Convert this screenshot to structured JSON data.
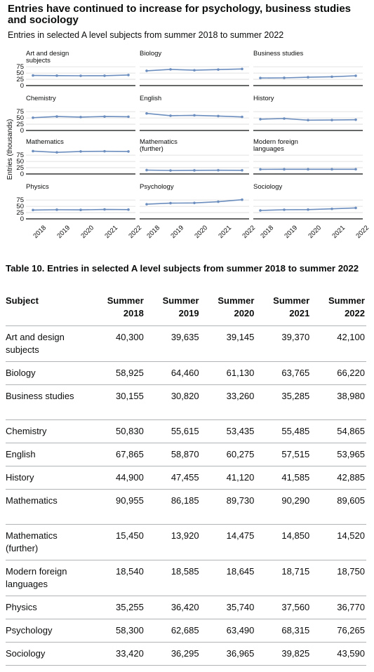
{
  "header": {
    "title": "Entries have continued to increase for psychology, business studies and sociology",
    "subtitle": "Entries in selected A level subjects from summer 2018 to summer 2022"
  },
  "chart_data": {
    "type": "line",
    "layout": "small-multiples",
    "ylabel": "Entries (thousands)",
    "yticks": [
      0,
      25,
      50,
      75
    ],
    "ylim": [
      0,
      95
    ],
    "x": [
      "2018",
      "2019",
      "2020",
      "2021",
      "2022"
    ],
    "line_color": "#6c8ebf",
    "panels": [
      {
        "name": "Art and design subjects",
        "values": [
          40.3,
          39.635,
          39.145,
          39.37,
          42.1
        ]
      },
      {
        "name": "Biology",
        "values": [
          58.925,
          64.46,
          61.13,
          63.765,
          66.22
        ]
      },
      {
        "name": "Business studies",
        "values": [
          30.155,
          30.82,
          33.26,
          35.285,
          38.98
        ]
      },
      {
        "name": "Chemistry",
        "values": [
          50.83,
          55.615,
          53.435,
          55.485,
          54.865
        ]
      },
      {
        "name": "English",
        "values": [
          67.865,
          58.87,
          60.275,
          57.515,
          53.965
        ]
      },
      {
        "name": "History",
        "values": [
          44.9,
          47.455,
          41.12,
          41.585,
          42.885
        ]
      },
      {
        "name": "Mathematics",
        "values": [
          90.955,
          86.185,
          89.73,
          90.29,
          89.605
        ]
      },
      {
        "name": "Mathematics (further)",
        "values": [
          15.45,
          13.92,
          14.475,
          14.85,
          14.52
        ]
      },
      {
        "name": "Modern foreign languages",
        "values": [
          18.54,
          18.585,
          18.645,
          18.715,
          18.75
        ]
      },
      {
        "name": "Physics",
        "values": [
          35.255,
          36.42,
          35.74,
          37.56,
          36.77
        ]
      },
      {
        "name": "Psychology",
        "values": [
          58.3,
          62.685,
          63.49,
          68.315,
          76.265
        ]
      },
      {
        "name": "Sociology",
        "values": [
          33.42,
          36.295,
          36.965,
          39.825,
          43.59
        ]
      }
    ]
  },
  "table": {
    "caption": "Table 10. Entries in selected A level subjects from summer 2018 to summer 2022",
    "headers": [
      "Subject",
      "Summer 2018",
      "Summer 2019",
      "Summer 2020",
      "Summer 2021",
      "Summer 2022"
    ],
    "rows": [
      [
        "Art and design subjects",
        "40,300",
        "39,635",
        "39,145",
        "39,370",
        "42,100"
      ],
      [
        "Biology",
        "58,925",
        "64,460",
        "61,130",
        "63,765",
        "66,220"
      ],
      [
        "Business studies",
        "30,155",
        "30,820",
        "33,260",
        "35,285",
        "38,980"
      ],
      [
        "Chemistry",
        "50,830",
        "55,615",
        "53,435",
        "55,485",
        "54,865"
      ],
      [
        "English",
        "67,865",
        "58,870",
        "60,275",
        "57,515",
        "53,965"
      ],
      [
        "History",
        "44,900",
        "47,455",
        "41,120",
        "41,585",
        "42,885"
      ],
      [
        "Mathematics",
        "90,955",
        "86,185",
        "89,730",
        "90,290",
        "89,605"
      ],
      [
        "Mathematics (further)",
        "15,450",
        "13,920",
        "14,475",
        "14,850",
        "14,520"
      ],
      [
        "Modern foreign languages",
        "18,540",
        "18,585",
        "18,645",
        "18,715",
        "18,750"
      ],
      [
        "Physics",
        "35,255",
        "36,420",
        "35,740",
        "37,560",
        "36,770"
      ],
      [
        "Psychology",
        "58,300",
        "62,685",
        "63,490",
        "68,315",
        "76,265"
      ],
      [
        "Sociology",
        "33,420",
        "36,295",
        "36,965",
        "39,825",
        "43,590"
      ]
    ]
  }
}
